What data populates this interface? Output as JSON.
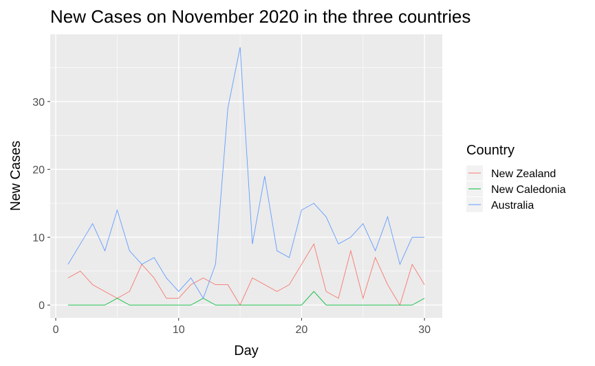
{
  "chart_data": {
    "type": "line",
    "title": "New Cases on November 2020 in the three countries",
    "xlabel": "Day",
    "ylabel": "New Cases",
    "xlim": [
      0,
      30
    ],
    "ylim": [
      0,
      38
    ],
    "x_ticks": [
      0,
      10,
      20,
      30
    ],
    "y_ticks": [
      0,
      10,
      20,
      30
    ],
    "grid": true,
    "legend": {
      "title": "Country",
      "placement": "right"
    },
    "x": [
      1,
      2,
      3,
      4,
      5,
      6,
      7,
      8,
      9,
      10,
      11,
      12,
      13,
      14,
      15,
      16,
      17,
      18,
      19,
      20,
      21,
      22,
      23,
      24,
      25,
      26,
      27,
      28,
      29,
      30
    ],
    "series": [
      {
        "name": "New Zealand",
        "color": "#F8766D",
        "values": [
          4,
          5,
          3,
          2,
          1,
          2,
          6,
          4,
          1,
          1,
          3,
          4,
          3,
          3,
          0,
          4,
          3,
          2,
          3,
          6,
          9,
          2,
          1,
          8,
          1,
          7,
          3,
          0,
          6,
          3
        ]
      },
      {
        "name": "New Caledonia",
        "color": "#00BA38",
        "values": [
          0,
          0,
          0,
          0,
          1,
          0,
          0,
          0,
          0,
          0,
          0,
          1,
          0,
          0,
          0,
          0,
          0,
          0,
          0,
          0,
          2,
          0,
          0,
          0,
          0,
          0,
          0,
          0,
          0,
          1
        ]
      },
      {
        "name": "Australia",
        "color": "#619CFF",
        "values": [
          6,
          9,
          12,
          8,
          14,
          8,
          6,
          7,
          4,
          2,
          4,
          1,
          6,
          29,
          38,
          9,
          19,
          8,
          7,
          14,
          15,
          13,
          9,
          10,
          12,
          8,
          13,
          6,
          10,
          10
        ]
      }
    ]
  }
}
